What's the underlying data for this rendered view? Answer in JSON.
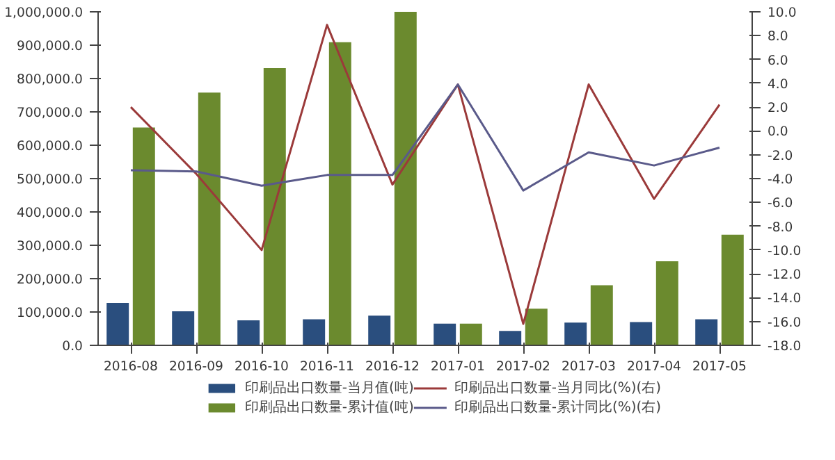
{
  "chart_data": {
    "type": "bar",
    "categories": [
      "2016-08",
      "2016-09",
      "2016-10",
      "2016-11",
      "2016-12",
      "2017-01",
      "2017-02",
      "2017-03",
      "2017-04",
      "2017-05"
    ],
    "series": [
      {
        "name": "印刷品出口数量-当月值(吨)",
        "color": "#2a4e7e",
        "values": [
          127000,
          102000,
          75000,
          78000,
          89000,
          65000,
          43000,
          68000,
          70000,
          78000
        ]
      },
      {
        "name": "印刷品出口数量-累计值(吨)",
        "color": "#6b8a2e",
        "values": [
          653000,
          758000,
          831000,
          909000,
          1000000,
          65000,
          110000,
          180000,
          252000,
          332000
        ]
      },
      {
        "name": "印刷品出口数量-当月同比(%)(右)",
        "type": "line",
        "axis": "y2",
        "color": "#9b3a3a",
        "values": [
          2.0,
          -3.6,
          -10.0,
          8.9,
          -4.5,
          3.9,
          -16.2,
          3.9,
          -5.7,
          2.2
        ]
      },
      {
        "name": "印刷品出口数量-累计同比(%)(右)",
        "type": "line",
        "axis": "y2",
        "color": "#5a5a8a",
        "values": [
          -3.3,
          -3.4,
          -4.6,
          -3.7,
          -3.7,
          3.9,
          -5.0,
          -1.8,
          -2.9,
          -1.4
        ]
      }
    ],
    "ylim": [
      0,
      1000000
    ],
    "yticks": [
      {
        "value": 0,
        "label": "0.0"
      },
      {
        "value": 100000,
        "label": "100,000.0"
      },
      {
        "value": 200000,
        "label": "200,000.0"
      },
      {
        "value": 300000,
        "label": "300,000.0"
      },
      {
        "value": 400000,
        "label": "400,000.0"
      },
      {
        "value": 500000,
        "label": "500,000.0"
      },
      {
        "value": 600000,
        "label": "600,000.0"
      },
      {
        "value": 700000,
        "label": "700,000.0"
      },
      {
        "value": 800000,
        "label": "800,000.0"
      },
      {
        "value": 900000,
        "label": "900,000.0"
      },
      {
        "value": 1000000,
        "label": "1,000,000.0"
      }
    ],
    "y2lim": [
      -18,
      10
    ],
    "y2ticks": [
      {
        "value": -18,
        "label": "-18.0"
      },
      {
        "value": -16,
        "label": "-16.0"
      },
      {
        "value": -14,
        "label": "-14.0"
      },
      {
        "value": -12,
        "label": "-12.0"
      },
      {
        "value": -10,
        "label": "-10.0"
      },
      {
        "value": -8,
        "label": "-8.0"
      },
      {
        "value": -6,
        "label": "-6.0"
      },
      {
        "value": -4,
        "label": "-4.0"
      },
      {
        "value": -2,
        "label": "-2.0"
      },
      {
        "value": 0,
        "label": "0.0"
      },
      {
        "value": 2,
        "label": "2.0"
      },
      {
        "value": 4,
        "label": "4.0"
      },
      {
        "value": 6,
        "label": "6.0"
      },
      {
        "value": 8,
        "label": "8.0"
      },
      {
        "value": 10,
        "label": "10.0"
      }
    ],
    "grid": false,
    "legend": "bottom",
    "marker": "none",
    "line_style": "solid"
  }
}
